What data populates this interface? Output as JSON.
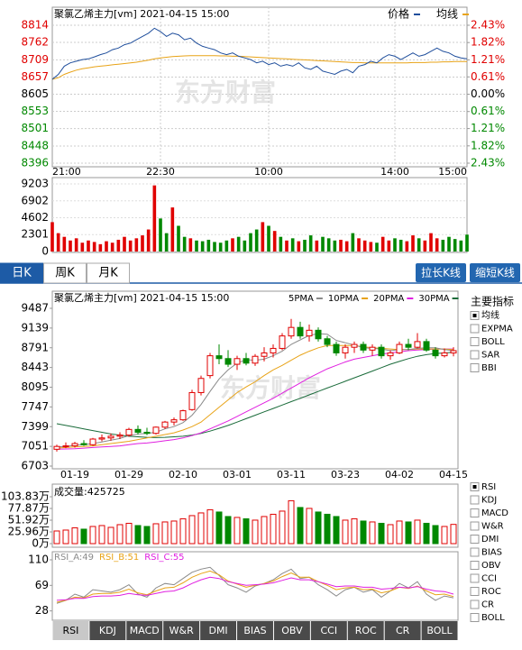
{
  "chart_data": [
    {
      "type": "line",
      "title": "聚氯乙烯主力[vm] 2021-04-15 15:00",
      "watermark": "东方财富",
      "categories": [
        "21:00",
        null,
        null,
        null,
        null,
        null,
        null,
        null,
        null,
        null,
        null,
        null,
        null,
        null,
        null,
        null,
        null,
        null,
        "22:30",
        null,
        null,
        null,
        null,
        null,
        null,
        null,
        null,
        null,
        null,
        null,
        null,
        null,
        null,
        null,
        null,
        null,
        "10:00",
        null,
        null,
        null,
        null,
        null,
        null,
        null,
        null,
        null,
        null,
        null,
        null,
        null,
        null,
        null,
        null,
        null,
        null,
        null,
        null,
        "14:00",
        null,
        null,
        null,
        null,
        null,
        null,
        null,
        null,
        null,
        null,
        null,
        "15:00"
      ],
      "series": [
        {
          "name": "价格",
          "color": "#1f4e9c",
          "values": [
            8650,
            8665,
            8690,
            8700,
            8705,
            8710,
            8712,
            8718,
            8725,
            8730,
            8740,
            8745,
            8755,
            8760,
            8770,
            8780,
            8790,
            8805,
            8795,
            8780,
            8790,
            8785,
            8770,
            8775,
            8760,
            8750,
            8745,
            8740,
            8730,
            8725,
            8730,
            8720,
            8715,
            8710,
            8700,
            8705,
            8695,
            8700,
            8690,
            8695,
            8690,
            8700,
            8685,
            8680,
            8690,
            8675,
            8670,
            8665,
            8675,
            8680,
            8670,
            8690,
            8695,
            8705,
            8700,
            8715,
            8725,
            8720,
            8710,
            8720,
            8730,
            8720,
            8725,
            8735,
            8745,
            8735,
            8730,
            8720,
            8715,
            8712
          ]
        },
        {
          "name": "均线",
          "color": "#e8a317",
          "values": [
            8650,
            8655,
            8665,
            8672,
            8678,
            8682,
            8685,
            8688,
            8690,
            8692,
            8694,
            8696,
            8698,
            8700,
            8702,
            8705,
            8708,
            8712,
            8715,
            8717,
            8719,
            8720,
            8721,
            8722,
            8722,
            8722,
            8722,
            8722,
            8721,
            8721,
            8720,
            8720,
            8719,
            8718,
            8717,
            8716,
            8715,
            8714,
            8713,
            8712,
            8711,
            8710,
            8709,
            8708,
            8707,
            8706,
            8705,
            8704,
            8703,
            8702,
            8701,
            8701,
            8700,
            8700,
            8700,
            8700,
            8700,
            8700,
            8700,
            8700,
            8701,
            8701,
            8701,
            8702,
            8702,
            8703,
            8703,
            8704,
            8704,
            8704
          ]
        }
      ],
      "ylim": [
        8396,
        8814
      ],
      "yticks": [
        8814,
        8762,
        8709,
        8657,
        8605,
        8553,
        8501,
        8448,
        8396
      ],
      "y2lim": [
        -2.43,
        2.43
      ],
      "y2ticks": [
        {
          "value": 2.43,
          "label": "2.43%"
        },
        {
          "value": 1.82,
          "label": "1.82%"
        },
        {
          "value": 1.21,
          "label": "1.21%"
        },
        {
          "value": 0.61,
          "label": "0.61%"
        },
        {
          "value": 0,
          "label": "0.00%"
        },
        {
          "value": -0.61,
          "label": "0.61%"
        },
        {
          "value": -1.21,
          "label": "1.21%"
        },
        {
          "value": -1.82,
          "label": "1.82%"
        },
        {
          "value": -2.43,
          "label": "2.43%"
        }
      ],
      "grid": true,
      "up_color": "#e00000",
      "down_color": "#008800"
    },
    {
      "type": "bar",
      "values": [
        4000,
        2500,
        2000,
        1500,
        1800,
        1200,
        1500,
        1300,
        1000,
        1400,
        1200,
        1600,
        2000,
        1500,
        1800,
        2200,
        3000,
        9000,
        4500,
        2500,
        6000,
        3500,
        2000,
        1800,
        1500,
        1400,
        1600,
        1300,
        1200,
        1500,
        1800,
        2000,
        1500,
        2500,
        3000,
        4000,
        3500,
        2800,
        2000,
        1500,
        1800,
        1400,
        1600,
        2200,
        1500,
        2000,
        1800,
        1500,
        1600,
        1400,
        2500,
        1800,
        1500,
        1300,
        1200,
        2000,
        1500,
        1800,
        1600,
        1400,
        2200,
        1800,
        1500,
        2500,
        1800,
        1600,
        2000,
        1700,
        1500,
        2300
      ],
      "ylim": [
        0,
        9203
      ],
      "yticks": [
        9203,
        6902,
        4602,
        2301,
        0
      ],
      "grid": true
    },
    {
      "type": "candlestick",
      "title": "聚氯乙烯主力[vm] 2021-04-15 15:00",
      "watermark": "东方财富",
      "categories": [
        null,
        null,
        "01-19",
        null,
        null,
        null,
        null,
        null,
        "01-29",
        null,
        null,
        null,
        null,
        null,
        "02-10",
        null,
        null,
        null,
        null,
        null,
        "03-01",
        null,
        null,
        null,
        null,
        null,
        "03-11",
        null,
        null,
        null,
        null,
        null,
        "03-23",
        null,
        null,
        null,
        null,
        null,
        "04-02",
        null,
        null,
        null,
        null,
        null,
        "04-15"
      ],
      "open": [
        7000,
        7050,
        7060,
        7100,
        7080,
        7180,
        7200,
        7230,
        7250,
        7350,
        7300,
        7280,
        7390,
        7480,
        7520,
        7700,
        8000,
        8300,
        8650,
        8600,
        8500,
        8600,
        8520,
        8640,
        8700,
        8780,
        9000,
        9150,
        9000,
        9100,
        8950,
        8850,
        8700,
        8800,
        8850,
        8750,
        8800,
        8650,
        8700,
        8850,
        8800,
        8900,
        8750,
        8650,
        8700
      ],
      "high": [
        7080,
        7120,
        7130,
        7160,
        7200,
        7260,
        7280,
        7300,
        7380,
        7420,
        7380,
        7400,
        7500,
        7560,
        7700,
        8050,
        8300,
        8700,
        8850,
        8750,
        8650,
        8700,
        8680,
        8800,
        8850,
        9050,
        9300,
        9250,
        9200,
        9150,
        9000,
        8900,
        8850,
        8900,
        8900,
        8850,
        8850,
        8750,
        8900,
        8950,
        9050,
        8950,
        8800,
        8780,
        8800
      ],
      "low": [
        6960,
        7020,
        7030,
        7060,
        7060,
        7140,
        7150,
        7180,
        7220,
        7260,
        7250,
        7260,
        7360,
        7420,
        7500,
        7680,
        7950,
        8250,
        8500,
        8450,
        8400,
        8480,
        8470,
        8550,
        8620,
        8750,
        8950,
        8950,
        8900,
        8900,
        8800,
        8650,
        8600,
        8700,
        8700,
        8650,
        8600,
        8580,
        8680,
        8750,
        8780,
        8720,
        8600,
        8620,
        8640
      ],
      "close": [
        7050,
        7060,
        7100,
        7080,
        7180,
        7200,
        7230,
        7250,
        7350,
        7300,
        7280,
        7390,
        7480,
        7520,
        7680,
        8000,
        8250,
        8650,
        8600,
        8500,
        8600,
        8520,
        8640,
        8700,
        8780,
        9000,
        9150,
        9000,
        9100,
        8950,
        8850,
        8700,
        8800,
        8850,
        8750,
        8800,
        8650,
        8700,
        8850,
        8800,
        8900,
        8750,
        8650,
        8700,
        8740
      ],
      "series": [
        {
          "name": "5PMA",
          "color": "#8a8a8a",
          "values": [
            7040,
            7050,
            7070,
            7080,
            7100,
            7130,
            7160,
            7190,
            7240,
            7270,
            7280,
            7300,
            7360,
            7400,
            7470,
            7600,
            7790,
            8020,
            8240,
            8400,
            8520,
            8580,
            8570,
            8590,
            8650,
            8730,
            8850,
            8930,
            9010,
            9040,
            9030,
            8920,
            8880,
            8840,
            8790,
            8780,
            8770,
            8740,
            8760,
            8760,
            8780,
            8790,
            8790,
            8760,
            8740
          ]
        },
        {
          "name": "10PMA",
          "color": "#e8a317",
          "values": [
            7020,
            7030,
            7040,
            7050,
            7060,
            7080,
            7100,
            7120,
            7140,
            7170,
            7200,
            7230,
            7260,
            7290,
            7340,
            7400,
            7480,
            7610,
            7740,
            7870,
            8000,
            8100,
            8190,
            8300,
            8400,
            8480,
            8570,
            8660,
            8730,
            8790,
            8830,
            8830,
            8830,
            8830,
            8810,
            8790,
            8780,
            8770,
            8760,
            8760,
            8770,
            8770,
            8770,
            8770,
            8760
          ]
        },
        {
          "name": "20PMA",
          "color": "#e020e0",
          "values": [
            7000,
            7005,
            7010,
            7020,
            7030,
            7040,
            7050,
            7060,
            7080,
            7100,
            7110,
            7130,
            7150,
            7170,
            7200,
            7240,
            7290,
            7360,
            7430,
            7500,
            7580,
            7660,
            7740,
            7820,
            7900,
            7990,
            8080,
            8170,
            8260,
            8340,
            8420,
            8480,
            8540,
            8590,
            8620,
            8650,
            8680,
            8700,
            8720,
            8740,
            8750,
            8760,
            8770,
            8770,
            8770
          ]
        },
        {
          "name": "30PMA",
          "color": "#1a6b3a",
          "values": [
            7450,
            7420,
            7390,
            7360,
            7330,
            7300,
            7270,
            7250,
            7230,
            7220,
            7210,
            7205,
            7210,
            7220,
            7230,
            7250,
            7280,
            7320,
            7370,
            7420,
            7480,
            7540,
            7600,
            7660,
            7720,
            7780,
            7840,
            7900,
            7960,
            8020,
            8080,
            8140,
            8200,
            8260,
            8320,
            8380,
            8440,
            8500,
            8550,
            8600,
            8640,
            8670,
            8690,
            8700,
            8710
          ]
        }
      ],
      "ylim": [
        6703,
        9487
      ],
      "yticks": [
        9487,
        9139,
        8791,
        8443,
        8095,
        7747,
        7399,
        7051,
        6703
      ],
      "up_color": "#e00000",
      "down_color": "#008800"
    },
    {
      "type": "bar",
      "title": "成交量:425725",
      "values": [
        28,
        30,
        35,
        32,
        38,
        40,
        36,
        42,
        45,
        40,
        38,
        44,
        48,
        50,
        55,
        62,
        68,
        75,
        70,
        60,
        58,
        55,
        52,
        60,
        65,
        72,
        95,
        80,
        78,
        70,
        65,
        60,
        52,
        55,
        50,
        48,
        45,
        42,
        50,
        48,
        52,
        45,
        40,
        38,
        42.57
      ],
      "ylim": [
        0,
        103.83
      ],
      "yticks": [
        {
          "value": 103.83,
          "label": "103.83万"
        },
        {
          "value": 77.87,
          "label": "77.87万"
        },
        {
          "value": 51.92,
          "label": "51.92万"
        },
        {
          "value": 25.96,
          "label": "25.96万"
        },
        {
          "value": 0,
          "label": "0万"
        }
      ]
    },
    {
      "type": "line",
      "series": [
        {
          "name": "RSI_A:49",
          "color": "#8a8a8a",
          "values": [
            40,
            45,
            55,
            50,
            62,
            60,
            58,
            62,
            70,
            55,
            50,
            65,
            72,
            70,
            80,
            90,
            95,
            98,
            85,
            70,
            65,
            58,
            68,
            72,
            78,
            88,
            95,
            80,
            82,
            70,
            62,
            52,
            62,
            66,
            58,
            62,
            50,
            60,
            72,
            65,
            75,
            55,
            45,
            52,
            49
          ]
        },
        {
          "name": "RSI_B:51",
          "color": "#e8a317",
          "values": [
            42,
            45,
            50,
            49,
            55,
            56,
            56,
            58,
            63,
            57,
            54,
            60,
            65,
            66,
            73,
            82,
            88,
            92,
            86,
            76,
            71,
            66,
            69,
            72,
            76,
            83,
            89,
            82,
            82,
            75,
            69,
            62,
            65,
            66,
            62,
            63,
            57,
            60,
            66,
            64,
            68,
            60,
            54,
            55,
            51
          ]
        },
        {
          "name": "RSI_C:55",
          "color": "#e020e0",
          "values": [
            45,
            46,
            48,
            48,
            51,
            52,
            52,
            53,
            56,
            54,
            53,
            56,
            59,
            60,
            65,
            72,
            78,
            82,
            80,
            75,
            72,
            69,
            70,
            71,
            73,
            77,
            81,
            78,
            78,
            75,
            71,
            67,
            68,
            68,
            66,
            66,
            63,
            64,
            66,
            65,
            67,
            63,
            60,
            59,
            55
          ]
        }
      ],
      "ylim": [
        13,
        123
      ],
      "yticks": [
        110,
        69,
        28
      ]
    }
  ],
  "period_tabs": {
    "items": [
      "日K",
      "周K",
      "月K"
    ],
    "selected_index": 0
  },
  "buttons": [
    "拉长K线",
    "缩短K线"
  ],
  "main_indicators": {
    "title": "主要指标",
    "items": [
      "均线",
      "EXPMA",
      "BOLL",
      "SAR",
      "BBI"
    ],
    "selected_index": 0
  },
  "sub_indicators": {
    "items": [
      "RSI",
      "KDJ",
      "MACD",
      "W&R",
      "DMI",
      "BIAS",
      "OBV",
      "CCI",
      "ROC",
      "CR",
      "BOLL"
    ],
    "selected_index": 0
  },
  "indicator_tabs": {
    "items": [
      "RSI",
      "KDJ",
      "MACD",
      "W&R",
      "DMI",
      "BIAS",
      "OBV",
      "CCI",
      "ROC",
      "CR",
      "BOLL"
    ],
    "selected_index": 0
  }
}
